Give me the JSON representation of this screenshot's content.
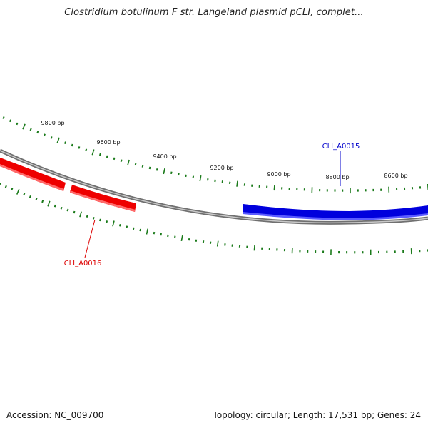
{
  "title": "Clostridium botulinum F str. Langeland plasmid pCLI, complet...",
  "footer": {
    "accession": "Accession: NC_009700",
    "summary": "Topology: circular; Length: 17,531 bp; Genes: 24"
  },
  "colors": {
    "tick": "#1a7a1a",
    "backbone": "#808080",
    "forward_gene": "#0000dd",
    "reverse_gene": "#ee0000"
  },
  "tick_labels": [
    "9800 bp",
    "9600 bp",
    "9400 bp",
    "9200 bp",
    "9000 bp",
    "8800 bp",
    "8600 bp"
  ],
  "genes": [
    {
      "id": "CLI_A0015",
      "label": "CLI_A0015",
      "strand": "forward",
      "color": "#0000dd"
    },
    {
      "id": "CLI_A0016",
      "label": "CLI_A0016",
      "strand": "reverse",
      "color": "#ee0000"
    }
  ]
}
